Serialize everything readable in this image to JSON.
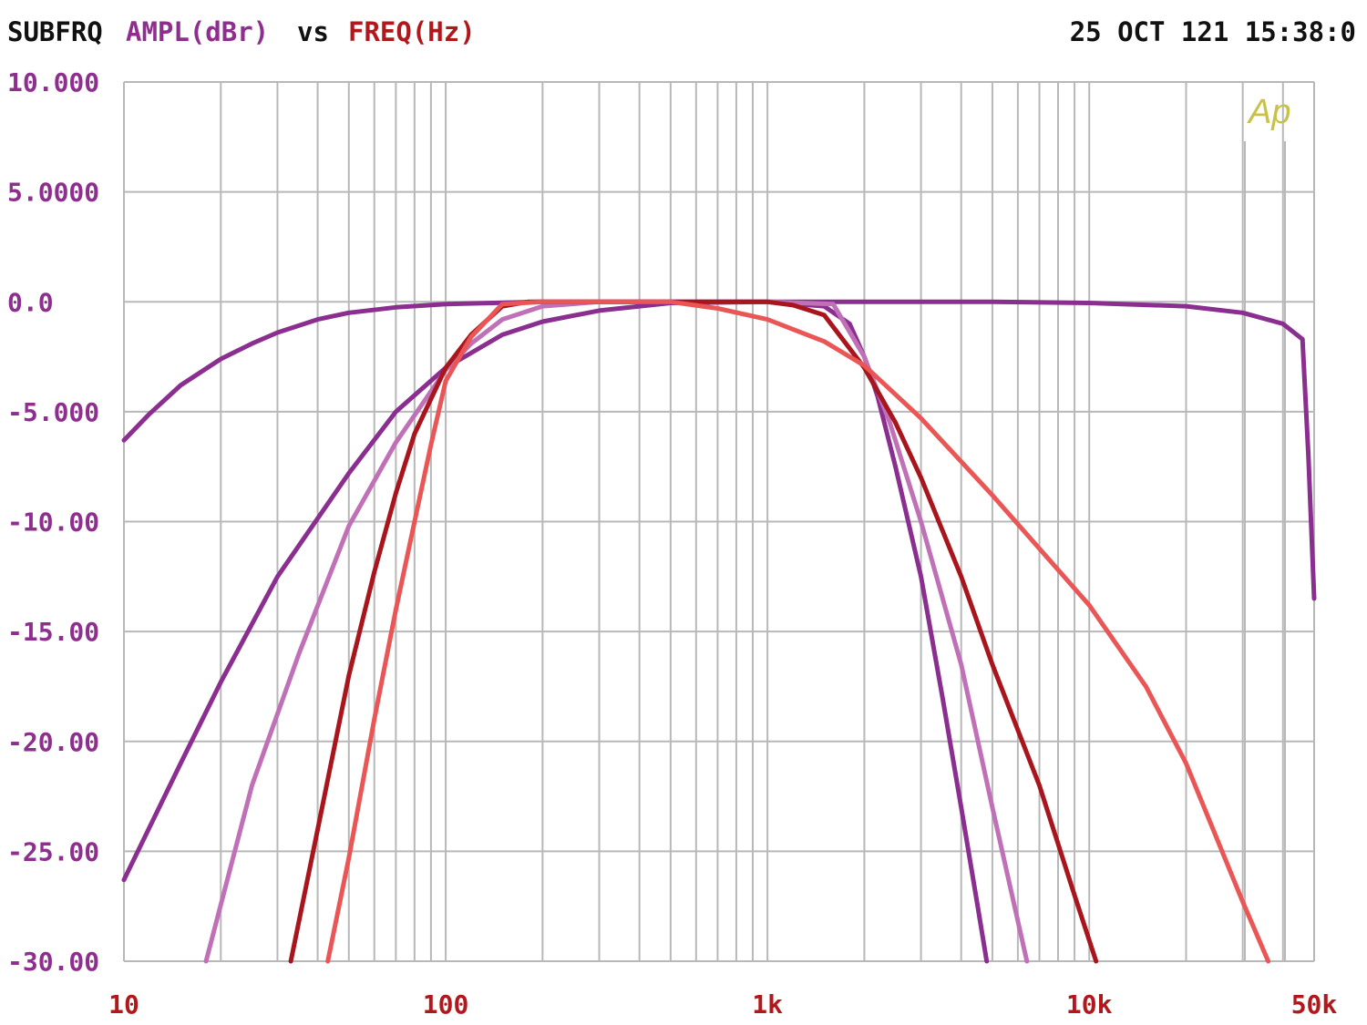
{
  "header": {
    "title_left": "SUBFRQ",
    "y_measure": "AMPL(dBr)",
    "vs": "vs",
    "x_measure": "FREQ(Hz)",
    "datetime": "25 OCT 121 15:38:0"
  },
  "logo_text": "Ap",
  "colors": {
    "grid": "#b8b8b8",
    "axis_text_y": "#8e2e8e",
    "axis_text_x": "#b0181c",
    "logo": "#c8c24a"
  },
  "chart_data": {
    "type": "line",
    "xscale": "log",
    "xlim": [
      10,
      50000
    ],
    "ylim": [
      -30,
      10
    ],
    "x_ticks": [
      {
        "value": 10,
        "label": "10"
      },
      {
        "value": 100,
        "label": "100"
      },
      {
        "value": 1000,
        "label": "1k"
      },
      {
        "value": 10000,
        "label": "10k"
      },
      {
        "value": 50000,
        "label": "50k"
      }
    ],
    "y_ticks": [
      {
        "value": 10,
        "label": "10.000"
      },
      {
        "value": 5,
        "label": "5.0000"
      },
      {
        "value": 0,
        "label": "0.0"
      },
      {
        "value": -5,
        "label": "-5.000"
      },
      {
        "value": -10,
        "label": "-10.00"
      },
      {
        "value": -15,
        "label": "-15.00"
      },
      {
        "value": -20,
        "label": "-20.00"
      },
      {
        "value": -25,
        "label": "-25.00"
      },
      {
        "value": -30,
        "label": "-30.00"
      }
    ],
    "grid": true,
    "series": [
      {
        "color": "#8a2e90",
        "points": [
          [
            10,
            -6.3
          ],
          [
            12,
            -5.1
          ],
          [
            15,
            -3.8
          ],
          [
            20,
            -2.6
          ],
          [
            25,
            -1.9
          ],
          [
            30,
            -1.4
          ],
          [
            40,
            -0.8
          ],
          [
            50,
            -0.5
          ],
          [
            70,
            -0.25
          ],
          [
            100,
            -0.1
          ],
          [
            200,
            0
          ],
          [
            1000,
            0
          ],
          [
            2000,
            0
          ],
          [
            5000,
            0
          ],
          [
            10000,
            -0.05
          ],
          [
            20000,
            -0.2
          ],
          [
            30000,
            -0.5
          ],
          [
            40000,
            -1
          ],
          [
            46000,
            -1.7
          ],
          [
            48000,
            -7
          ],
          [
            50000,
            -13.5
          ]
        ]
      },
      {
        "color": "#8a2e90",
        "points": [
          [
            10,
            -26.3
          ],
          [
            15,
            -21
          ],
          [
            20,
            -17.3
          ],
          [
            30,
            -12.5
          ],
          [
            50,
            -7.8
          ],
          [
            70,
            -5
          ],
          [
            100,
            -3
          ],
          [
            150,
            -1.5
          ],
          [
            200,
            -0.9
          ],
          [
            300,
            -0.4
          ],
          [
            500,
            -0.05
          ],
          [
            1000,
            0
          ],
          [
            1500,
            -0.2
          ],
          [
            1800,
            -1
          ],
          [
            2000,
            -2.5
          ],
          [
            2200,
            -4.3
          ],
          [
            2500,
            -7.5
          ],
          [
            3000,
            -12.5
          ],
          [
            3500,
            -18
          ],
          [
            4000,
            -23
          ],
          [
            4500,
            -27.5
          ],
          [
            4800,
            -30
          ]
        ]
      },
      {
        "color": "#c070b6",
        "points": [
          [
            18,
            -30
          ],
          [
            25,
            -22
          ],
          [
            35,
            -16
          ],
          [
            50,
            -10.2
          ],
          [
            70,
            -6.4
          ],
          [
            100,
            -3.1
          ],
          [
            120,
            -1.9
          ],
          [
            150,
            -0.8
          ],
          [
            200,
            -0.2
          ],
          [
            300,
            0
          ],
          [
            1000,
            0
          ],
          [
            1600,
            -0.1
          ],
          [
            2000,
            -2.5
          ],
          [
            2400,
            -5.5
          ],
          [
            3000,
            -10
          ],
          [
            4000,
            -16.5
          ],
          [
            5000,
            -23
          ],
          [
            6400,
            -30
          ]
        ]
      },
      {
        "color": "#a9151c",
        "points": [
          [
            33,
            -30
          ],
          [
            40,
            -24
          ],
          [
            50,
            -17
          ],
          [
            60,
            -12.3
          ],
          [
            70,
            -8.7
          ],
          [
            80,
            -6
          ],
          [
            100,
            -3
          ],
          [
            120,
            -1.5
          ],
          [
            150,
            -0.2
          ],
          [
            180,
            0
          ],
          [
            1000,
            0
          ],
          [
            1200,
            -0.15
          ],
          [
            1500,
            -0.6
          ],
          [
            2000,
            -3
          ],
          [
            2500,
            -5.5
          ],
          [
            3000,
            -8
          ],
          [
            4000,
            -12.5
          ],
          [
            5000,
            -16.5
          ],
          [
            7000,
            -22
          ],
          [
            9000,
            -27
          ],
          [
            10500,
            -30
          ]
        ]
      },
      {
        "color": "#ea5555",
        "points": [
          [
            43,
            -30
          ],
          [
            50,
            -25.3
          ],
          [
            60,
            -19
          ],
          [
            70,
            -14
          ],
          [
            80,
            -10
          ],
          [
            90,
            -6.5
          ],
          [
            100,
            -3.6
          ],
          [
            120,
            -1.6
          ],
          [
            150,
            -0.1
          ],
          [
            200,
            0
          ],
          [
            500,
            0
          ],
          [
            700,
            -0.3
          ],
          [
            1000,
            -0.8
          ],
          [
            1500,
            -1.8
          ],
          [
            2000,
            -2.9
          ],
          [
            3000,
            -5.3
          ],
          [
            5000,
            -8.8
          ],
          [
            10000,
            -13.8
          ],
          [
            15000,
            -17.5
          ],
          [
            20000,
            -21
          ],
          [
            30000,
            -27.3
          ],
          [
            36000,
            -30
          ]
        ]
      }
    ]
  }
}
